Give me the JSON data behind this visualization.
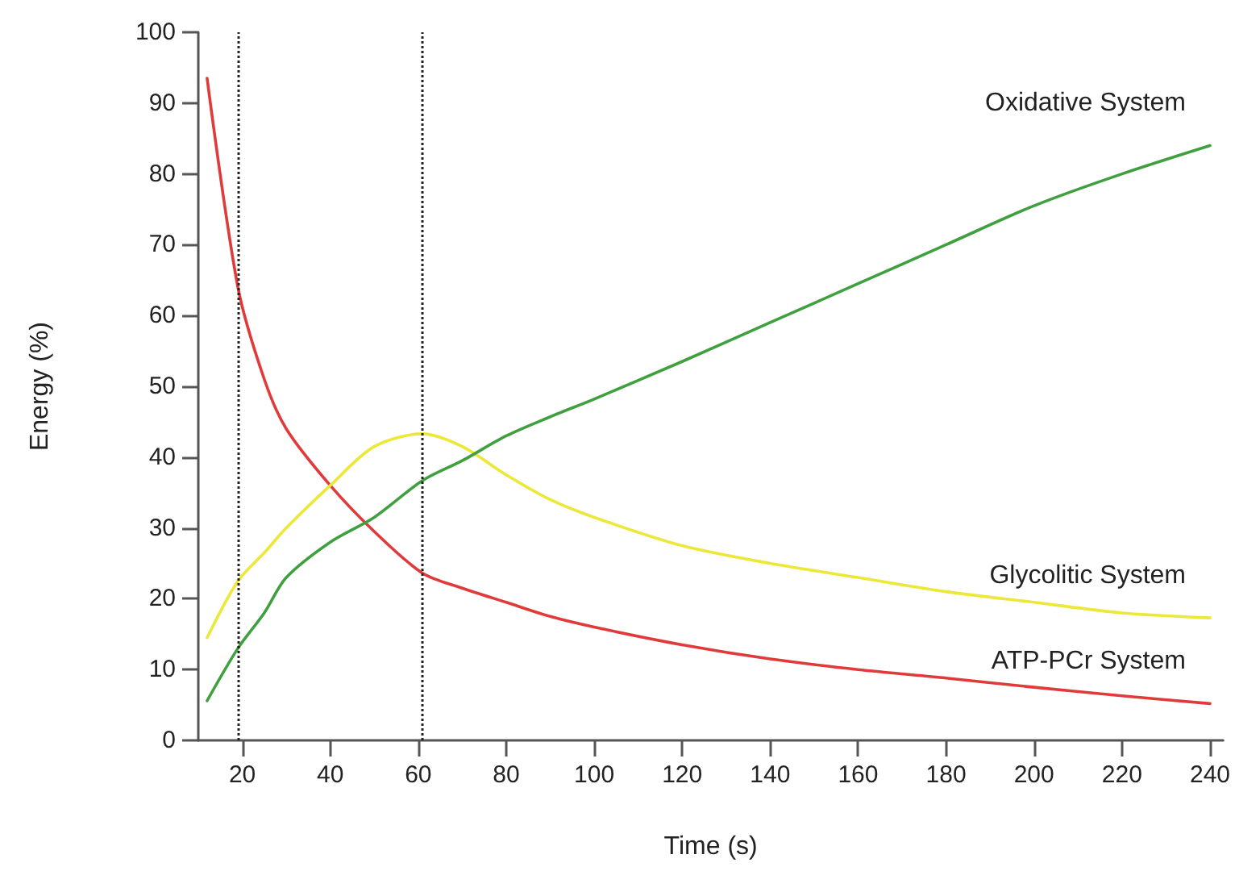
{
  "chart_data": {
    "type": "line",
    "xlabel": "Time (s)",
    "ylabel": "Energy (%)",
    "x": [
      12,
      19,
      25,
      30,
      40,
      50,
      61,
      70,
      80,
      90,
      100,
      120,
      140,
      160,
      180,
      200,
      220,
      240
    ],
    "xlim": [
      10,
      243
    ],
    "xticks": [
      20,
      40,
      60,
      80,
      100,
      120,
      140,
      160,
      180,
      200,
      220,
      240
    ],
    "ylim": [
      0,
      100
    ],
    "yticks": [
      0,
      10,
      20,
      30,
      40,
      50,
      60,
      70,
      80,
      90,
      100
    ],
    "grid": false,
    "legend": false,
    "marker": "none",
    "line_style": "solid",
    "series": [
      {
        "name": "ATP-PCr System",
        "color": "#e03a3a",
        "values": [
          93.5,
          64,
          51,
          44,
          36,
          29.5,
          23.6,
          21.5,
          19.5,
          17.5,
          16,
          13.5,
          11.5,
          10,
          8.8,
          7.5,
          6.3,
          5.2
        ]
      },
      {
        "name": "Glycolitic System",
        "color": "#ece838",
        "values": [
          14.5,
          22.5,
          26.5,
          30,
          36,
          41.5,
          43.3,
          41.5,
          37.5,
          34,
          31.5,
          27.5,
          25,
          23,
          21,
          19.5,
          18,
          17.3
        ]
      },
      {
        "name": "Oxidative System",
        "color": "#40a040",
        "values": [
          5.6,
          13,
          18,
          23,
          28,
          31.5,
          36.7,
          39.5,
          43,
          45.7,
          48.2,
          53.5,
          59,
          64.5,
          70,
          75.5,
          80,
          84
        ]
      }
    ],
    "ref_lines": [
      {
        "axis": "x",
        "value": 19,
        "color": "#222222",
        "line_style": "dotted"
      },
      {
        "axis": "x",
        "value": 61,
        "color": "#222222",
        "line_style": "dotted"
      }
    ]
  }
}
